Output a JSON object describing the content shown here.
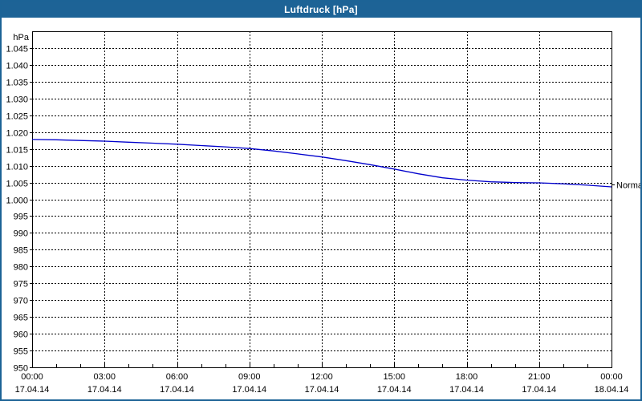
{
  "window": {
    "title": "Luftdruck [hPa]"
  },
  "colors": {
    "titlebar_bg": "#1d6396",
    "window_border": "#1c6396",
    "plot_bg": "#ffffff",
    "plot_border": "#000000",
    "grid": "#000000",
    "axis_text": "#000000",
    "series_line": "#0000cc"
  },
  "chart_data": {
    "type": "line",
    "title": "Luftdruck [hPa]",
    "grid": "dashed",
    "y_axis": {
      "unit_label": "hPa",
      "min": 950,
      "max": 1050,
      "tick_step": 5,
      "ticks": [
        {
          "label": "1.045",
          "value": 1045
        },
        {
          "label": "1.040",
          "value": 1040
        },
        {
          "label": "1.035",
          "value": 1035
        },
        {
          "label": "1.030",
          "value": 1030
        },
        {
          "label": "1.025",
          "value": 1025
        },
        {
          "label": "1.020",
          "value": 1020
        },
        {
          "label": "1.015",
          "value": 1015
        },
        {
          "label": "1.010",
          "value": 1010
        },
        {
          "label": "1.005",
          "value": 1005
        },
        {
          "label": "1.000",
          "value": 1000
        },
        {
          "label": "995",
          "value": 995
        },
        {
          "label": "990",
          "value": 990
        },
        {
          "label": "985",
          "value": 985
        },
        {
          "label": "980",
          "value": 980
        },
        {
          "label": "975",
          "value": 975
        },
        {
          "label": "970",
          "value": 970
        },
        {
          "label": "965",
          "value": 965
        },
        {
          "label": "960",
          "value": 960
        },
        {
          "label": "955",
          "value": 955
        },
        {
          "label": "950",
          "value": 950
        }
      ]
    },
    "x_axis": {
      "hours_span": 24,
      "major_step_hours": 3,
      "minor_step_hours": 1,
      "ticks": [
        {
          "hour": 0,
          "time": "00:00",
          "date": "17.04.14"
        },
        {
          "hour": 3,
          "time": "03:00",
          "date": "17.04.14"
        },
        {
          "hour": 6,
          "time": "06:00",
          "date": "17.04.14"
        },
        {
          "hour": 9,
          "time": "09:00",
          "date": "17.04.14"
        },
        {
          "hour": 12,
          "time": "12:00",
          "date": "17.04.14"
        },
        {
          "hour": 15,
          "time": "15:00",
          "date": "17.04.14"
        },
        {
          "hour": 18,
          "time": "18:00",
          "date": "17.04.14"
        },
        {
          "hour": 21,
          "time": "21:00",
          "date": "17.04.14"
        },
        {
          "hour": 24,
          "time": "00:00",
          "date": "18.04.14"
        }
      ]
    },
    "series": [
      {
        "name": "Luftdruck",
        "color": "#0000cc",
        "x_hours": [
          0,
          1,
          2,
          3,
          4,
          5,
          6,
          7,
          8,
          9,
          10,
          11,
          12,
          13,
          14,
          15,
          16,
          17,
          18,
          19,
          20,
          21,
          22,
          23,
          24
        ],
        "values": [
          1017.8,
          1017.7,
          1017.5,
          1017.3,
          1017.0,
          1016.7,
          1016.4,
          1016.0,
          1015.6,
          1015.1,
          1014.4,
          1013.5,
          1012.6,
          1011.5,
          1010.3,
          1009.0,
          1007.6,
          1006.4,
          1005.7,
          1005.2,
          1005.0,
          1004.9,
          1004.6,
          1004.2,
          1003.7
        ]
      }
    ],
    "annotations": [
      {
        "label": "Normal",
        "value": 1004.3,
        "side": "right"
      }
    ]
  }
}
